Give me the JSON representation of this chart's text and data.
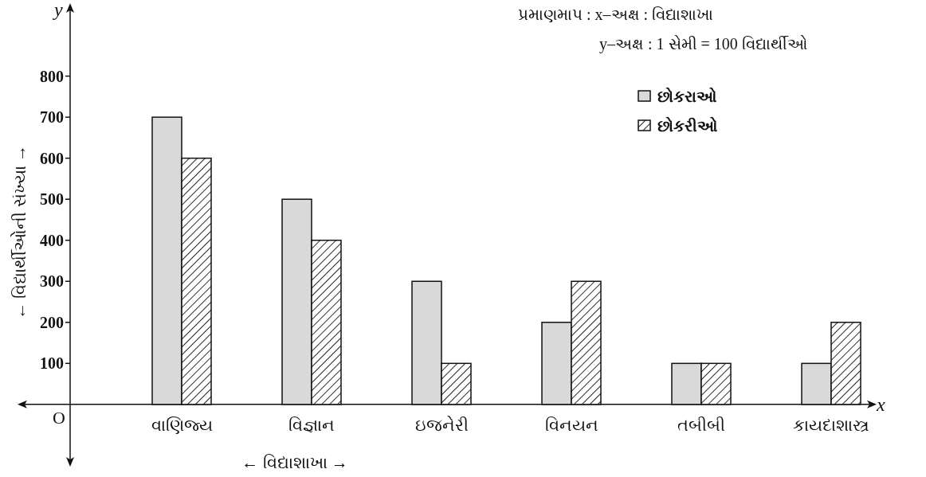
{
  "chart_data": {
    "type": "bar",
    "xlabel": "← વિદ્યાશાખા →",
    "ylabel": "← વિદ્યાર્થીઓની સંખ્યા →",
    "categories": [
      "વાણિજ્ય",
      "વિજ્ઞાન",
      "ઇજનેરી",
      "વિનયન",
      "તબીબી",
      "કાયદાશાસ્ત્ર"
    ],
    "series": [
      {
        "name": "છોકરાઓ",
        "color": "#d9d9d9",
        "values": [
          700,
          500,
          300,
          200,
          100,
          100
        ]
      },
      {
        "name": "છોકરીઓ",
        "color": "#111111",
        "values": [
          600,
          400,
          100,
          300,
          100,
          200
        ]
      }
    ],
    "ylim": [
      -140,
      970
    ],
    "yticks": [
      100,
      200,
      300,
      400,
      500,
      600,
      700,
      800
    ],
    "grid": false,
    "legend": "top right",
    "annotations": [
      "પ્રમાણમાપ :  x–અક્ષ : વિદ્યાશાખા",
      "y–અક્ષ : 1 સેમી = 100 વિદ્યાર્થીઓ",
      "x",
      "y",
      "O"
    ]
  }
}
